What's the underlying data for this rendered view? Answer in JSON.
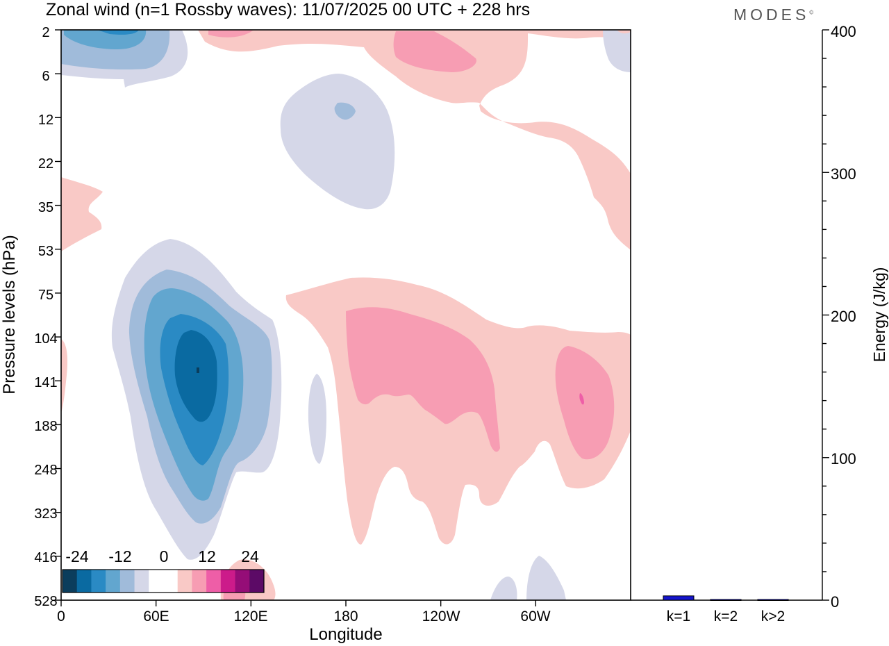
{
  "title": "Zonal wind (n=1 Rossby waves):  11/07/2025  00 UTC  + 228 hrs",
  "brand": "MODES",
  "brand_mark": "©",
  "chart_data": [
    {
      "type": "heatmap",
      "title": "Zonal wind (n=1 Rossby waves):  11/07/2025  00 UTC  + 228 hrs",
      "xlabel": "Longitude",
      "ylabel": "Pressure levels (hPa)",
      "x_ticks": [
        "0",
        "60E",
        "120E",
        "180",
        "120W",
        "60W"
      ],
      "x_tick_values": [
        0,
        60,
        120,
        180,
        240,
        300
      ],
      "xlim": [
        0,
        360
      ],
      "y_ticks": [
        "2",
        "6",
        "12",
        "22",
        "35",
        "53",
        "75",
        "104",
        "141",
        "188",
        "248",
        "323",
        "416",
        "528"
      ],
      "colorbar": {
        "labels": [
          "-24",
          "-12",
          "0",
          "12",
          "24"
        ],
        "colors": [
          "#0b3d5c",
          "#0a6aa1",
          "#2a8ac4",
          "#62a6cf",
          "#a0bbda",
          "#d5d7e8",
          "#ffffff",
          "#ffffff",
          "#f9c9c6",
          "#f79db3",
          "#ee5ea7",
          "#cc1b8a",
          "#950d77",
          "#5c0a66"
        ]
      },
      "features": [
        {
          "name": "easterly core near 85E",
          "lon": 85,
          "level_hPa": 141,
          "value": -20
        },
        {
          "name": "westerly maximum near 195E-240E",
          "lon": 215,
          "level_hPa": 120,
          "value": 12
        },
        {
          "name": "westerly maximum near 330E",
          "lon": 330,
          "level_hPa": 160,
          "value": 14
        }
      ]
    },
    {
      "type": "bar",
      "ylabel": "Energy (J/kg)",
      "ylim": [
        0,
        400
      ],
      "y_ticks": [
        "0",
        "100",
        "200",
        "300",
        "400"
      ],
      "categories": [
        "k=1",
        "k=2",
        "k>2"
      ],
      "values": [
        3,
        0.5,
        0.5
      ],
      "colors": [
        "#1515cc",
        "#1515cc",
        "#1515cc"
      ]
    }
  ]
}
